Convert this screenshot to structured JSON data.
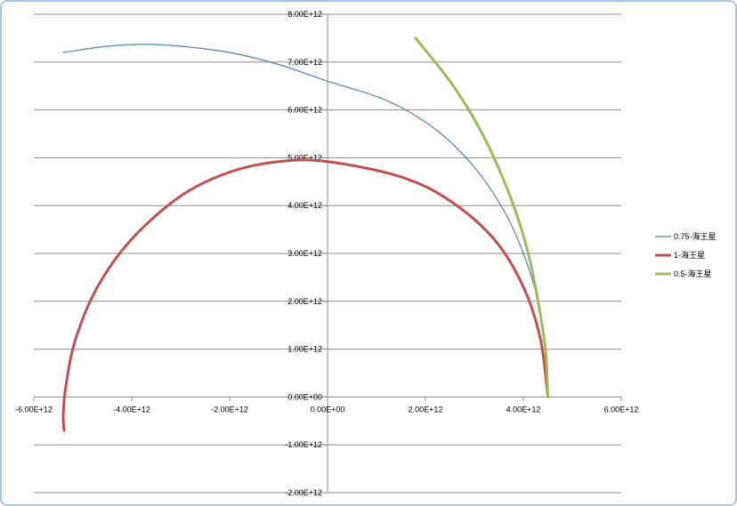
{
  "chart_data": {
    "type": "scatter",
    "xlim": [
      -6000000000000.0,
      6000000000000.0
    ],
    "ylim": [
      -2000000000000.0,
      8000000000000.0
    ],
    "x_ticks": [
      -6000000000000.0,
      -4000000000000.0,
      -2000000000000.0,
      0,
      2000000000000.0,
      4000000000000.0,
      6000000000000.0
    ],
    "x_tick_labels": [
      "-6.00E+12",
      "-4.00E+12",
      "-2.00E+12",
      "0.00E+00",
      "2.00E+12",
      "4.00E+12",
      "6.00E+12"
    ],
    "y_ticks": [
      -2000000000000.0,
      -1000000000000.0,
      0,
      1000000000000.0,
      2000000000000.0,
      3000000000000.0,
      4000000000000.0,
      5000000000000.0,
      6000000000000.0,
      7000000000000.0,
      8000000000000.0
    ],
    "y_tick_labels": [
      "-2.00E+12",
      "-1.00E+12",
      "0.00E+00",
      "1.00E+12",
      "2.00E+12",
      "3.00E+12",
      "4.00E+12",
      "5.00E+12",
      "6.00E+12",
      "7.00E+12",
      "8.00E+12"
    ],
    "grid": true,
    "legend_position": "right",
    "series": [
      {
        "name": "0.75-海王星",
        "color": "#4f81bd",
        "x": [
          4500000000000.0,
          4450000000000.0,
          4300000000000.0,
          4000000000000.0,
          3600000000000.0,
          3000000000000.0,
          2200000000000.0,
          1200000000000.0,
          0,
          -1000000000000.0,
          -2000000000000.0,
          -3000000000000.0,
          -3800000000000.0,
          -4600000000000.0,
          -5400000000000.0
        ],
        "y": [
          0,
          1000000000000.0,
          2000000000000.0,
          3000000000000.0,
          3900000000000.0,
          4800000000000.0,
          5600000000000.0,
          6200000000000.0,
          6600000000000.0,
          6950000000000.0,
          7200000000000.0,
          7330000000000.0,
          7370000000000.0,
          7320000000000.0,
          7200000000000.0
        ]
      },
      {
        "name": "1-海王星",
        "color": "#c0504d",
        "x": [
          4500000000000.0,
          4350000000000.0,
          4000000000000.0,
          3400000000000.0,
          2500000000000.0,
          1500000000000.0,
          0,
          -1000000000000.0,
          -2000000000000.0,
          -3000000000000.0,
          -4000000000000.0,
          -4700000000000.0,
          -5150000000000.0,
          -5350000000000.0,
          -5400000000000.0,
          -5380000000000.0
        ],
        "y": [
          0,
          1200000000000.0,
          2300000000000.0,
          3300000000000.0,
          4100000000000.0,
          4600000000000.0,
          4920000000000.0,
          4920000000000.0,
          4700000000000.0,
          4200000000000.0,
          3300000000000.0,
          2300000000000.0,
          1200000000000.0,
          200000000000.0,
          -400000000000.0,
          -700000000000.0
        ]
      },
      {
        "name": "0.5-海王星",
        "color": "#9bbb59",
        "x": [
          4500000000000.0,
          4450000000000.0,
          4300000000000.0,
          4100000000000.0,
          3800000000000.0,
          3400000000000.0,
          3000000000000.0,
          2500000000000.0,
          1800000000000.0
        ],
        "y": [
          0,
          1000000000000.0,
          2000000000000.0,
          3000000000000.0,
          4000000000000.0,
          5000000000000.0,
          5800000000000.0,
          6600000000000.0,
          7500000000000.0
        ]
      }
    ]
  }
}
